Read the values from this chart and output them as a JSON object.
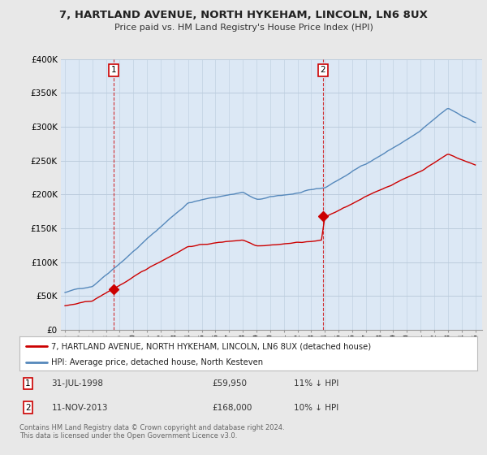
{
  "title": "7, HARTLAND AVENUE, NORTH HYKEHAM, LINCOLN, LN6 8UX",
  "subtitle": "Price paid vs. HM Land Registry's House Price Index (HPI)",
  "legend_line1": "7, HARTLAND AVENUE, NORTH HYKEHAM, LINCOLN, LN6 8UX (detached house)",
  "legend_line2": "HPI: Average price, detached house, North Kesteven",
  "annotation1_label": "1",
  "annotation1_date": "31-JUL-1998",
  "annotation1_price": "£59,950",
  "annotation1_hpi": "11% ↓ HPI",
  "annotation2_label": "2",
  "annotation2_date": "11-NOV-2013",
  "annotation2_price": "£168,000",
  "annotation2_hpi": "10% ↓ HPI",
  "footnote": "Contains HM Land Registry data © Crown copyright and database right 2024.\nThis data is licensed under the Open Government Licence v3.0.",
  "sale1_x": 1998.58,
  "sale1_y": 59950,
  "sale2_x": 2013.86,
  "sale2_y": 168000,
  "red_color": "#cc0000",
  "blue_color": "#5588bb",
  "shade_color": "#ddeeff",
  "background_color": "#e8e8e8",
  "plot_bg_color": "#dce8f5",
  "ylim_max": 400000,
  "xlim_start": 1994.7,
  "xlim_end": 2025.5,
  "yticks": [
    0,
    50000,
    100000,
    150000,
    200000,
    250000,
    300000,
    350000,
    400000
  ]
}
